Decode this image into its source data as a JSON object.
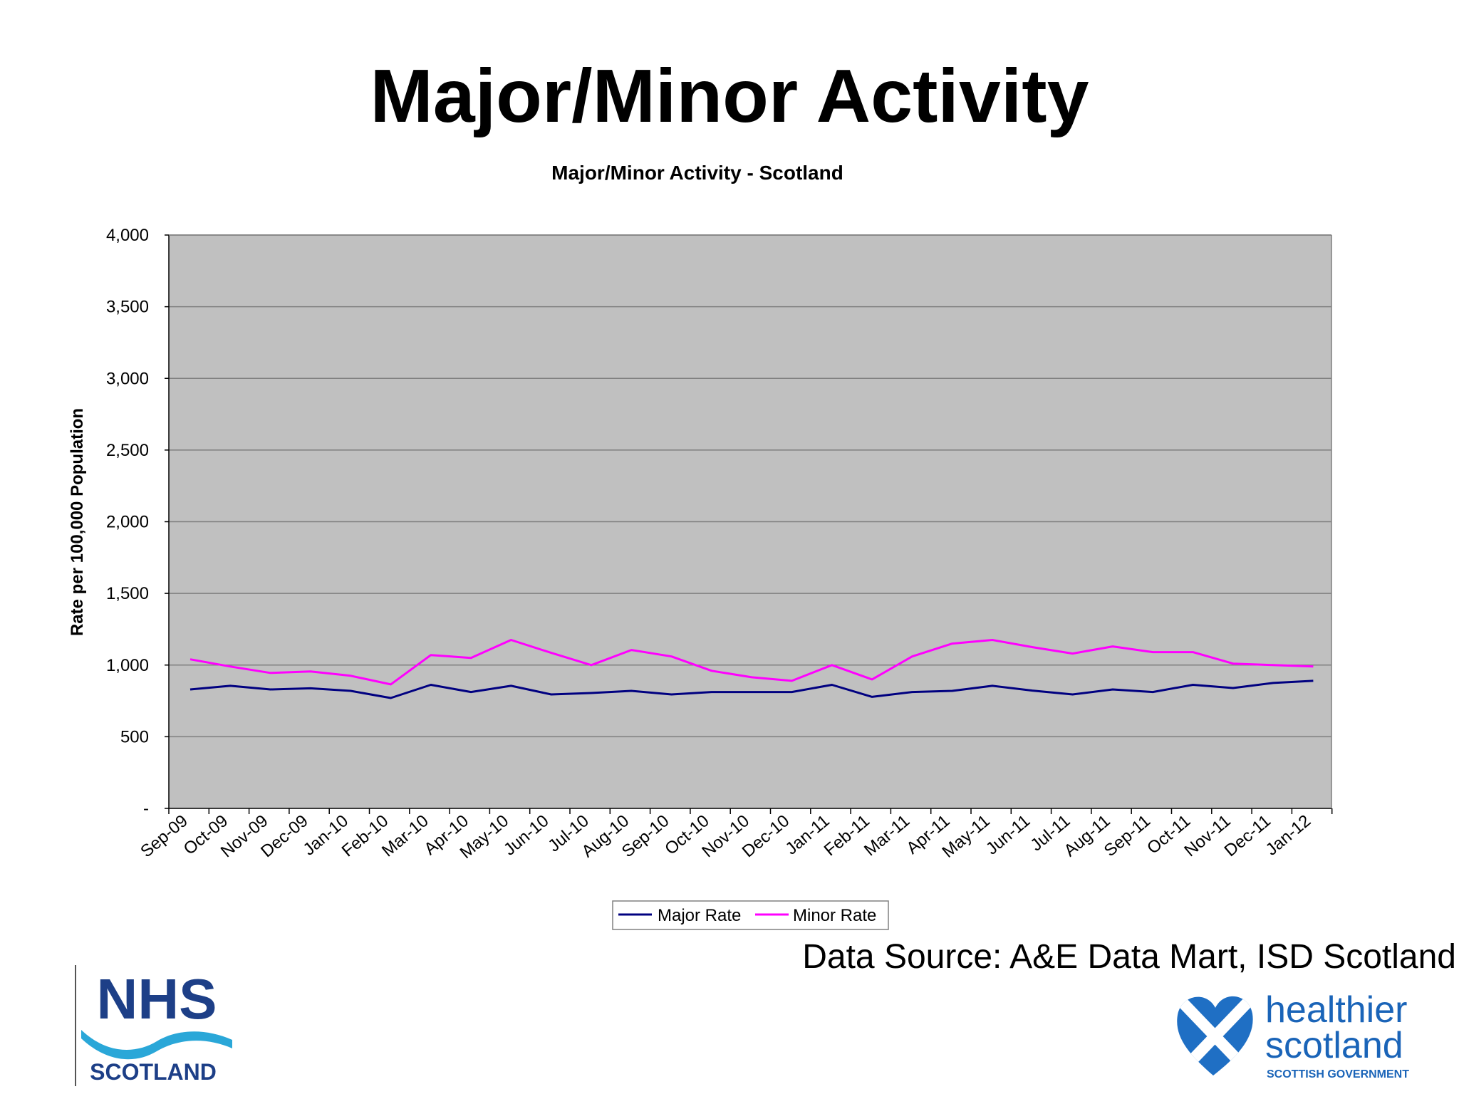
{
  "slide": {
    "title": "Major/Minor Activity",
    "data_source": "Data Source:  A&E Data Mart, ISD Scotland"
  },
  "logos": {
    "nhs": {
      "main": "NHS",
      "sub": "SCOTLAND",
      "color": "#1d3f87",
      "wave_color": "#2aa7d8"
    },
    "healthier_scotland": {
      "line1": "healthier",
      "line2": "scotland",
      "line3": "SCOTTISH GOVERNMENT",
      "color": "#1a64b8"
    }
  },
  "colors": {
    "plot_bg": "#c0c0c0",
    "gridline": "#7f7f7f",
    "major": "#000080",
    "minor": "#ff00ff"
  },
  "chart_data": {
    "type": "line",
    "title": "Major/Minor Activity - Scotland",
    "xlabel": "",
    "ylabel": "Rate per 100,000 Population",
    "ylim": [
      0,
      4000
    ],
    "yticks": [
      0,
      500,
      1000,
      1500,
      2000,
      2500,
      3000,
      3500,
      4000
    ],
    "ytick_labels": [
      "-",
      "500",
      "1,000",
      "1,500",
      "2,000",
      "2,500",
      "3,000",
      "3,500",
      "4,000"
    ],
    "grid": true,
    "legend_position": "bottom-center",
    "categories": [
      "Sep-09",
      "Oct-09",
      "Nov-09",
      "Dec-09",
      "Jan-10",
      "Feb-10",
      "Mar-10",
      "Apr-10",
      "May-10",
      "Jun-10",
      "Jul-10",
      "Aug-10",
      "Sep-10",
      "Oct-10",
      "Nov-10",
      "Dec-10",
      "Jan-11",
      "Feb-11",
      "Mar-11",
      "Apr-11",
      "May-11",
      "Jun-11",
      "Jul-11",
      "Aug-11",
      "Sep-11",
      "Oct-11",
      "Nov-11",
      "Dec-11",
      "Jan-12"
    ],
    "series": [
      {
        "name": "Major Rate",
        "color": "#000080",
        "values": [
          830,
          855,
          830,
          838,
          820,
          770,
          862,
          812,
          855,
          795,
          805,
          820,
          795,
          812,
          812,
          812,
          862,
          778,
          812,
          820,
          855,
          822,
          795,
          830,
          812,
          862,
          840,
          875,
          890
        ]
      },
      {
        "name": "Minor Rate",
        "color": "#ff00ff",
        "values": [
          1040,
          990,
          945,
          955,
          925,
          865,
          1070,
          1050,
          1175,
          1085,
          1000,
          1105,
          1060,
          960,
          915,
          890,
          1000,
          900,
          1060,
          1150,
          1175,
          1125,
          1080,
          1130,
          1090,
          1090,
          1010,
          1000,
          990
        ]
      }
    ]
  }
}
